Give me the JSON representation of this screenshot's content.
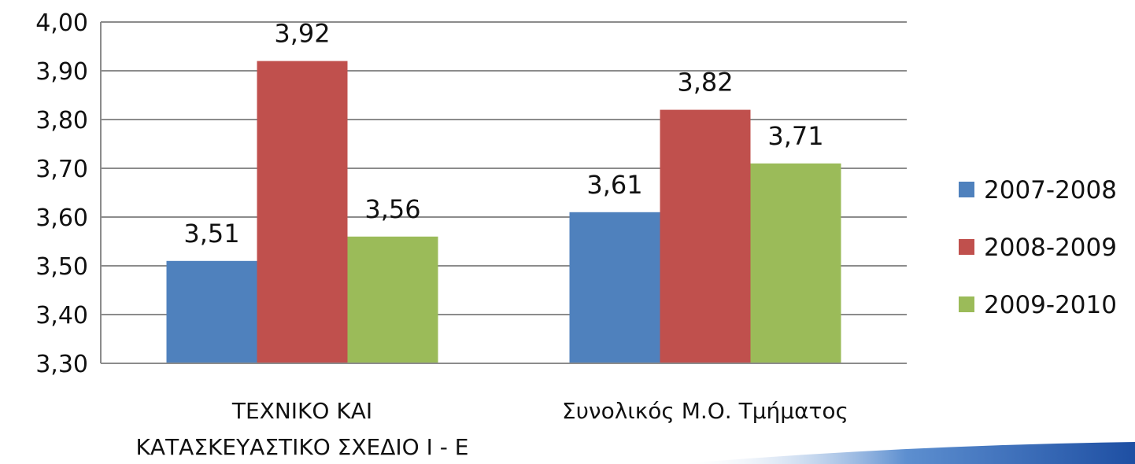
{
  "chart_data": {
    "type": "bar",
    "categories": [
      [
        "ΤΕΧΝΙΚΟ ΚΑΙ",
        "ΚΑΤΑΣΚΕΥΑΣΤΙΚΟ ΣΧΕΔΙΟ Ι - Ε"
      ],
      [
        "Συνολικός Μ.Ο. Τμήματος"
      ]
    ],
    "series": [
      {
        "name": "2007-2008",
        "values": [
          3.51,
          3.61
        ],
        "labels": [
          "3,51",
          "3,61"
        ],
        "color": "#4F81BD"
      },
      {
        "name": "2008-2009",
        "values": [
          3.92,
          3.82
        ],
        "labels": [
          "3,92",
          "3,82"
        ],
        "color": "#C0504D"
      },
      {
        "name": "2009-2010",
        "values": [
          3.56,
          3.71
        ],
        "labels": [
          "3,56",
          "3,71"
        ],
        "color": "#9BBB59"
      }
    ],
    "yticks": [
      "3,30",
      "3,40",
      "3,50",
      "3,60",
      "3,70",
      "3,80",
      "3,90",
      "4,00"
    ],
    "ylim": [
      3.3,
      4.0
    ],
    "grid": true,
    "legend": "right",
    "title": "",
    "xlabel": "",
    "ylabel": ""
  }
}
